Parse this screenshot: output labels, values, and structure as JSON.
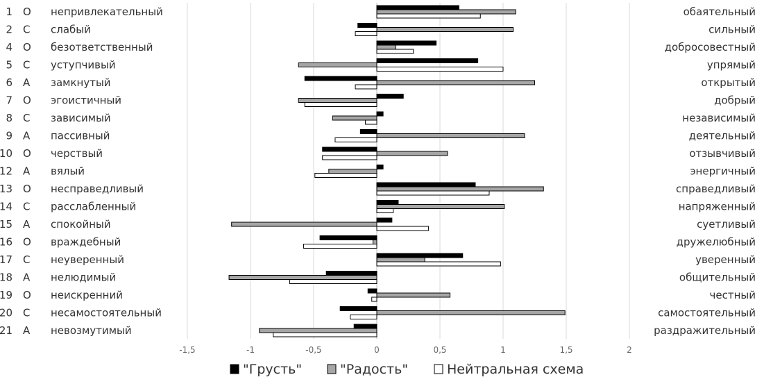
{
  "chart_data": {
    "type": "bar",
    "orientation": "horizontal",
    "title": "",
    "xlabel": "",
    "ylabel": "",
    "xlim": [
      -1.5,
      2
    ],
    "x_ticks": [
      "-1,5",
      "-1",
      "-0,5",
      "0",
      "0,5",
      "1",
      "1,5",
      "2"
    ],
    "x_tick_values": [
      -1.5,
      -1,
      -0.5,
      0,
      0.5,
      1,
      1.5,
      2
    ],
    "grid": true,
    "legend_position": "bottom",
    "rows": [
      {
        "num": "1",
        "letter": "О",
        "left": "непривлекательный",
        "right": "обаятельный"
      },
      {
        "num": "2",
        "letter": "С",
        "left": "слабый",
        "right": "сильный"
      },
      {
        "num": "4",
        "letter": "О",
        "left": "безответственный",
        "right": "добросовестный"
      },
      {
        "num": "5",
        "letter": "С",
        "left": "уступчивый",
        "right": "упрямый"
      },
      {
        "num": "6",
        "letter": "А",
        "left": "замкнутый",
        "right": "открытый"
      },
      {
        "num": "7",
        "letter": "О",
        "left": "эгоистичный",
        "right": "добрый"
      },
      {
        "num": "8",
        "letter": "С",
        "left": "зависимый",
        "right": "независимый"
      },
      {
        "num": "9",
        "letter": "А",
        "left": "пассивный",
        "right": "деятельный"
      },
      {
        "num": "10",
        "letter": "О",
        "left": "черствый",
        "right": "отзывчивый"
      },
      {
        "num": "12",
        "letter": "А",
        "left": "вялый",
        "right": "энергичный"
      },
      {
        "num": "13",
        "letter": "О",
        "left": "несправедливый",
        "right": "справедливый"
      },
      {
        "num": "14",
        "letter": "С",
        "left": "расслабленный",
        "right": "напряженный"
      },
      {
        "num": "15",
        "letter": "А",
        "left": "спокойный",
        "right": "суетливый"
      },
      {
        "num": "16",
        "letter": "О",
        "left": "враждебный",
        "right": "дружелюбный"
      },
      {
        "num": "17",
        "letter": "С",
        "left": "неуверенный",
        "right": "уверенный"
      },
      {
        "num": "18",
        "letter": "А",
        "left": "нелюдимый",
        "right": "общительный"
      },
      {
        "num": "19",
        "letter": "О",
        "left": "неискренний",
        "right": "честный"
      },
      {
        "num": "20",
        "letter": "С",
        "left": "несамостоятельный",
        "right": "самостоятельный"
      },
      {
        "num": "21",
        "letter": "А",
        "left": "невозмутимый",
        "right": "раздражительный"
      }
    ],
    "series": [
      {
        "name": "\"Грусть\"",
        "color": "#000000",
        "values": [
          0.65,
          -0.15,
          0.47,
          0.8,
          -0.57,
          0.21,
          0.05,
          -0.13,
          -0.43,
          0.05,
          0.78,
          0.17,
          0.12,
          -0.45,
          0.68,
          -0.4,
          -0.07,
          -0.29,
          -0.18
        ]
      },
      {
        "name": "\"Радость\"",
        "color": "#a6a6a6",
        "values": [
          1.1,
          1.08,
          0.15,
          -0.62,
          1.25,
          -0.62,
          -0.35,
          1.17,
          0.56,
          -0.38,
          1.32,
          1.01,
          -1.15,
          -0.03,
          0.38,
          -1.17,
          0.58,
          1.49,
          -0.93
        ]
      },
      {
        "name": "Нейтральная схема",
        "color": "#ffffff",
        "values": [
          0.82,
          -0.17,
          0.29,
          1.0,
          -0.17,
          -0.57,
          -0.09,
          -0.33,
          -0.43,
          -0.49,
          0.89,
          0.13,
          0.41,
          -0.58,
          0.98,
          -0.69,
          -0.04,
          -0.21,
          -0.82
        ]
      }
    ]
  }
}
